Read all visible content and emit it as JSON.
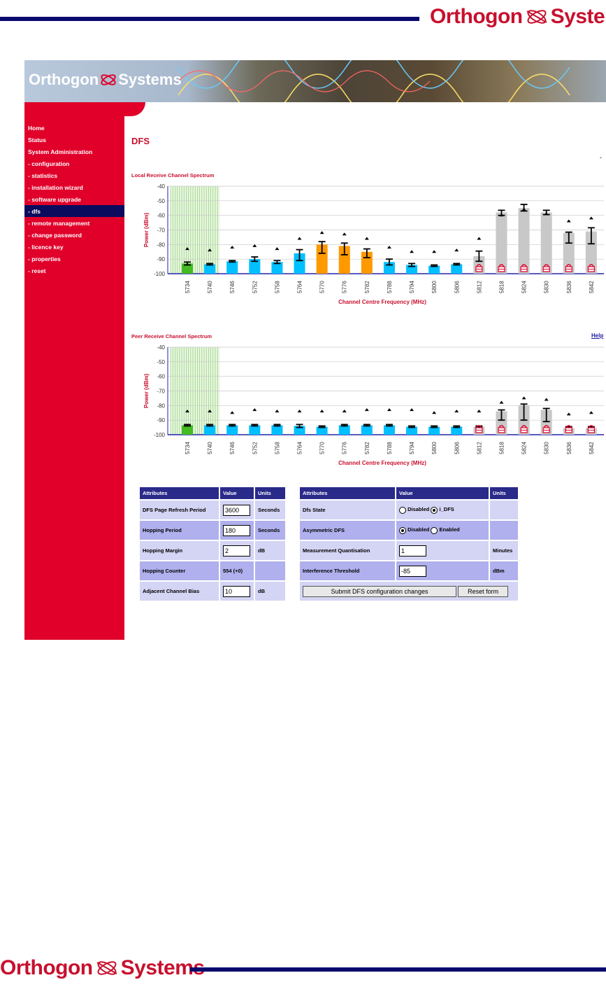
{
  "brand": {
    "word1": "Orthogon",
    "word2": "Systems"
  },
  "nav": {
    "items": [
      {
        "label": "Home",
        "active": false
      },
      {
        "label": "Status",
        "active": false
      },
      {
        "label": "System Administration",
        "active": false
      },
      {
        "label": "- configuration",
        "active": false
      },
      {
        "label": "- statistics",
        "active": false
      },
      {
        "label": "- installation wizard",
        "active": false
      },
      {
        "label": "- software upgrade",
        "active": false
      },
      {
        "label": "- dfs",
        "active": true
      },
      {
        "label": "- remote management",
        "active": false
      },
      {
        "label": "- change password",
        "active": false
      },
      {
        "label": "- licence key",
        "active": false
      },
      {
        "label": "- properties",
        "active": false
      },
      {
        "label": "- reset",
        "active": false
      }
    ]
  },
  "page": {
    "title": "DFS",
    "help_label": "Help",
    "dash": "-"
  },
  "chart_data": [
    {
      "type": "bar",
      "title": "Local Receive Channel Spectrum",
      "xlabel": "Channel Centre Frequency (MHz)",
      "ylabel": "Power (dBm)",
      "ylim": [
        -100,
        -40
      ],
      "yticks": [
        -40,
        -50,
        -60,
        -70,
        -80,
        -90,
        -100
      ],
      "grid": true,
      "categories": [
        "5734",
        "5740",
        "5746",
        "5752",
        "5758",
        "5764",
        "5770",
        "5776",
        "5782",
        "5788",
        "5794",
        "5800",
        "5806",
        "5812",
        "5818",
        "5824",
        "5830",
        "5836",
        "5842"
      ],
      "values": [
        -93,
        -93.5,
        -91.5,
        -90,
        -92,
        -86,
        -80,
        -81,
        -85,
        -92,
        -94,
        -94.5,
        -93.5,
        -88,
        -58,
        -55,
        -58,
        -72,
        -71
      ],
      "err_low": [
        -94,
        -94,
        -92,
        -91.5,
        -93,
        -91,
        -86,
        -87,
        -89,
        -94,
        -95,
        -95,
        -94,
        -91.5,
        -60,
        -57,
        -59.5,
        -79,
        -79.5
      ],
      "err_high": [
        -92,
        -93,
        -91,
        -88.5,
        -91,
        -83.5,
        -78,
        -79,
        -83,
        -90,
        -93,
        -94,
        -93,
        -84.5,
        -56.5,
        -52.5,
        -56.5,
        -71.5,
        -68.5
      ],
      "peak": [
        -83,
        -84,
        -82,
        -81,
        -83,
        -76,
        -72,
        -73,
        -76,
        -82,
        -85,
        -85,
        -84,
        -76,
        -60,
        -56,
        -59,
        -64,
        -62
      ],
      "status": [
        "active",
        "normal",
        "normal",
        "normal",
        "normal",
        "normal",
        "interference",
        "interference",
        "interference",
        "normal",
        "normal",
        "normal",
        "normal",
        "barred",
        "barred",
        "barred",
        "barred",
        "barred",
        "barred"
      ],
      "colors": {
        "active": "#44bb22",
        "normal": "#00c0ff",
        "interference": "#ff9900",
        "barred": "#c8c8c8"
      },
      "hatched_channels": [
        "5734",
        "5740"
      ]
    },
    {
      "type": "bar",
      "title": "Peer Receive Channel Spectrum",
      "xlabel": "Channel Centre Frequency (MHz)",
      "ylabel": "Power (dBm)",
      "ylim": [
        -100,
        -40
      ],
      "yticks": [
        -40,
        -50,
        -60,
        -70,
        -80,
        -90,
        -100
      ],
      "grid": true,
      "categories": [
        "5734",
        "5740",
        "5746",
        "5752",
        "5758",
        "5764",
        "5770",
        "5776",
        "5782",
        "5788",
        "5794",
        "5800",
        "5806",
        "5812",
        "5818",
        "5824",
        "5830",
        "5836",
        "5842"
      ],
      "values": [
        -93.5,
        -93.5,
        -93.5,
        -93.5,
        -93.5,
        -94,
        -94.5,
        -93.5,
        -93.5,
        -93.5,
        -94.5,
        -94.5,
        -94.5,
        -94.5,
        -84,
        -80,
        -83,
        -95.5,
        -95.5
      ],
      "err_low": [
        -94,
        -94,
        -94,
        -94,
        -94,
        -95,
        -95,
        -94,
        -94,
        -94,
        -95,
        -95,
        -95,
        -95,
        -90,
        -90,
        -91,
        -96.5,
        -96.5
      ],
      "err_high": [
        -93,
        -93,
        -93,
        -93,
        -93,
        -93,
        -94,
        -93,
        -93,
        -93,
        -94,
        -94,
        -94,
        -94,
        -83,
        -79,
        -82,
        -94.5,
        -94.5
      ],
      "peak": [
        -84,
        -84,
        -85,
        -83,
        -84,
        -84,
        -84,
        -84,
        -83,
        -83,
        -83,
        -85,
        -84,
        -84,
        -78,
        -75,
        -76,
        -86,
        -85
      ],
      "status": [
        "active",
        "normal",
        "normal",
        "normal",
        "normal",
        "normal",
        "normal",
        "normal",
        "normal",
        "normal",
        "normal",
        "normal",
        "normal",
        "barred",
        "barred",
        "barred",
        "barred",
        "barred",
        "barred"
      ],
      "colors": {
        "active": "#44bb22",
        "normal": "#00c0ff",
        "interference": "#ff9900",
        "barred": "#c8c8c8"
      },
      "hatched_channels": [
        "5734",
        "5740"
      ]
    }
  ],
  "left_table": {
    "headers": [
      "Attributes",
      "Value",
      "Units"
    ],
    "rows": [
      {
        "attr": "DFS Page Refresh Period",
        "value": "3600",
        "units": "Seconds",
        "input": true
      },
      {
        "attr": "Hopping Period",
        "value": "180",
        "units": "Seconds",
        "input": true
      },
      {
        "attr": "Hopping Margin",
        "value": "2",
        "units": "dB",
        "input": true
      },
      {
        "attr": "Hopping Counter",
        "value": "554 (+0)",
        "units": "",
        "input": false
      },
      {
        "attr": "Adjacent Channel Bias",
        "value": "10",
        "units": "dB",
        "input": true
      }
    ]
  },
  "right_table": {
    "headers": [
      "Attributes",
      "Value",
      "Units"
    ],
    "dfs_state": {
      "label": "Dfs State",
      "opt1": "Disabled",
      "opt2": "i_DFS",
      "selected": "i_DFS"
    },
    "asym": {
      "label": "Asymmetric DFS",
      "opt1": "Disabled",
      "opt2": "Enabled",
      "selected": "Disabled"
    },
    "mq": {
      "label": "Measurement Quantisation",
      "value": "1",
      "units": "Minutes"
    },
    "it": {
      "label": "Interference Threshold",
      "value": "-85",
      "units": "dBm"
    },
    "submit_label": "Submit DFS configuration changes",
    "reset_label": "Reset form"
  }
}
